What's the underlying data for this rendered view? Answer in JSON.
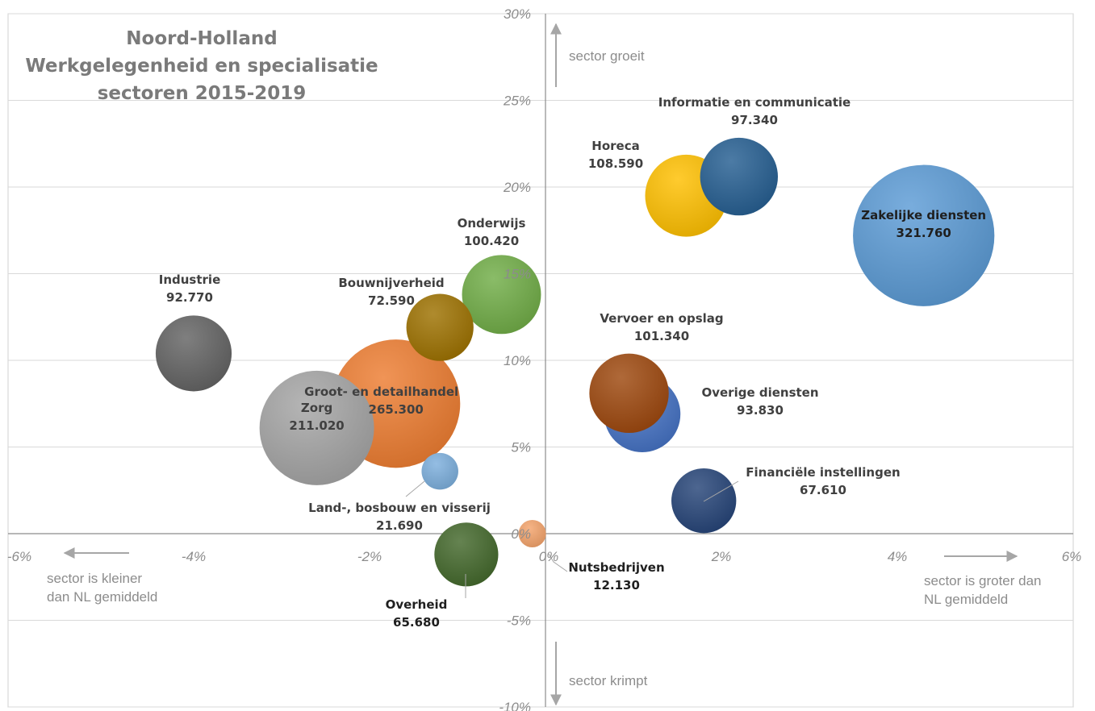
{
  "chart_data": {
    "type": "bubble",
    "title_lines": [
      "Noord-Holland",
      "Werkgelegenheid en specialisatie",
      "sectoren 2015-2019"
    ],
    "x_axis": {
      "range": [
        -6,
        6
      ],
      "ticks": [
        -6,
        -4,
        -2,
        0,
        2,
        4,
        6
      ],
      "tick_labels": [
        "-6%",
        "-4%",
        "-2%",
        "0%",
        "2%",
        "4%",
        "6%"
      ]
    },
    "y_axis": {
      "range": [
        -10,
        30
      ],
      "ticks": [
        -10,
        -5,
        0,
        5,
        10,
        15,
        20,
        25,
        30
      ],
      "tick_labels": [
        "-10%",
        "-5%",
        "0%",
        "5%",
        "10%",
        "15%",
        "20%",
        "25%",
        "30%"
      ]
    },
    "grid": true,
    "annotations": {
      "up": "sector groeit",
      "down": "sector krimpt",
      "left": [
        "sector is kleiner",
        "dan NL gemiddeld"
      ],
      "right": [
        "sector is groter dan",
        "NL gemiddeld"
      ]
    },
    "bubbles": [
      {
        "name": "Groot- en detailhandel",
        "value_label": "265.300",
        "size": 265300,
        "x": -1.7,
        "y": 7.5,
        "color": "#ed7d31"
      },
      {
        "name": "Zorg",
        "value_label": "211.020",
        "size": 211020,
        "x": -2.6,
        "y": 6.1,
        "color": "#a5a5a5"
      },
      {
        "name": "Zakelijke diensten",
        "value_label": "321.760",
        "size": 321760,
        "x": 4.3,
        "y": 17.2,
        "color": "#5b9bd5"
      },
      {
        "name": "Horeca",
        "value_label": "108.590",
        "size": 108590,
        "x": 1.6,
        "y": 19.5,
        "color": "#ffc000"
      },
      {
        "name": "Informatie en communicatie",
        "value_label": "97.340",
        "size": 97340,
        "x": 2.2,
        "y": 20.6,
        "color": "#255e91"
      },
      {
        "name": "Onderwijs",
        "value_label": "100.420",
        "size": 100420,
        "x": -0.5,
        "y": 13.8,
        "color": "#70ad47"
      },
      {
        "name": "Bouwnijverheid",
        "value_label": "72.590",
        "size": 72590,
        "x": -1.2,
        "y": 11.9,
        "color": "#9e7200"
      },
      {
        "name": "Industrie",
        "value_label": "92.770",
        "size": 92770,
        "x": -4.0,
        "y": 10.4,
        "color": "#636363"
      },
      {
        "name": "Overige diensten",
        "value_label": "93.830",
        "size": 93830,
        "x": 1.1,
        "y": 6.9,
        "color": "#4472c4"
      },
      {
        "name": "Vervoer en opslag",
        "value_label": "101.340",
        "size": 101340,
        "x": 0.95,
        "y": 8.1,
        "color": "#9e480e"
      },
      {
        "name": "Financiële instellingen",
        "value_label": "67.610",
        "size": 67610,
        "x": 1.8,
        "y": 1.9,
        "color": "#264478"
      },
      {
        "name": "Land-, bosbouw en visserij",
        "value_label": "21.690",
        "size": 21690,
        "x": -1.2,
        "y": 3.6,
        "color": "#7cafdd"
      },
      {
        "name": "Overheid",
        "value_label": "65.680",
        "size": 65680,
        "x": -0.9,
        "y": -1.2,
        "color": "#43682b"
      },
      {
        "name": "Nutsbedrijven",
        "value_label": "12.130",
        "size": 12130,
        "x": -0.15,
        "y": 0.0,
        "color": "#f4a46b"
      }
    ]
  }
}
